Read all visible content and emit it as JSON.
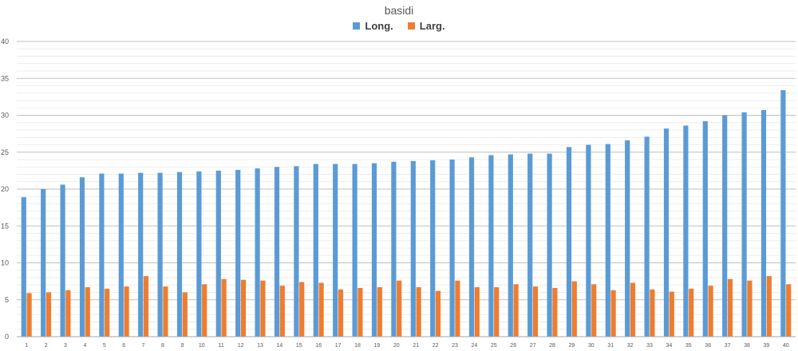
{
  "chart_data": {
    "type": "bar",
    "title": "basidi",
    "xlabel": "",
    "ylabel": "",
    "ylim": [
      0,
      40
    ],
    "yticks": [
      0,
      5,
      10,
      15,
      20,
      25,
      30,
      35,
      40
    ],
    "grid": true,
    "legend_position": "top",
    "categories": [
      "1",
      "2",
      "3",
      "4",
      "5",
      "6",
      "7",
      "8",
      "9",
      "10",
      "11",
      "12",
      "13",
      "14",
      "15",
      "16",
      "17",
      "18",
      "19",
      "20",
      "21",
      "22",
      "23",
      "24",
      "25",
      "26",
      "27",
      "28",
      "29",
      "30",
      "31",
      "32",
      "33",
      "34",
      "35",
      "36",
      "37",
      "38",
      "39",
      "40"
    ],
    "series": [
      {
        "name": "Long.",
        "color": "#5B9BD5",
        "values": [
          18.9,
          20.0,
          20.6,
          21.6,
          22.1,
          22.1,
          22.2,
          22.2,
          22.3,
          22.4,
          22.5,
          22.6,
          22.8,
          23.0,
          23.1,
          23.4,
          23.4,
          23.4,
          23.5,
          23.7,
          23.8,
          23.9,
          24.0,
          24.3,
          24.6,
          24.7,
          24.8,
          24.8,
          25.7,
          26.0,
          26.1,
          26.6,
          27.1,
          28.2,
          28.6,
          29.2,
          30.0,
          30.4,
          30.7,
          33.4
        ]
      },
      {
        "name": "Larg.",
        "color": "#ED7D31",
        "values": [
          5.9,
          6.0,
          6.3,
          6.7,
          6.5,
          6.8,
          8.2,
          6.8,
          6.0,
          7.1,
          7.8,
          7.7,
          7.6,
          6.9,
          7.4,
          7.3,
          6.4,
          6.6,
          6.7,
          7.6,
          6.7,
          6.2,
          7.6,
          6.7,
          6.7,
          7.1,
          6.8,
          6.6,
          7.5,
          7.1,
          6.3,
          7.3,
          6.4,
          6.1,
          6.5,
          6.9,
          7.8,
          7.6,
          8.2,
          7.1
        ]
      }
    ]
  }
}
